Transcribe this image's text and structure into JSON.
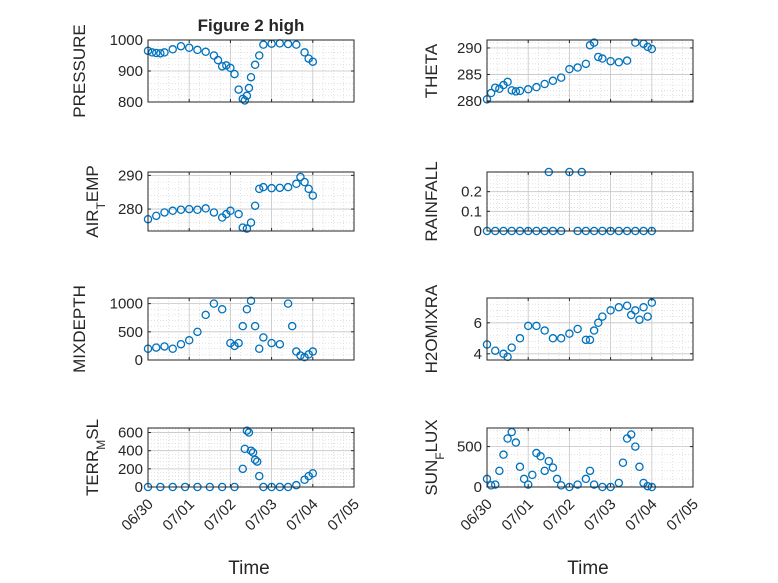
{
  "figure": {
    "title": "Figure 2 high"
  },
  "chart_data": [
    {
      "type": "scatter",
      "title": "Figure 2 high",
      "xlabel": "",
      "ylabel": "PRESSURE",
      "ylim": [
        800,
        1000
      ],
      "yticks": [
        "800",
        "900",
        "1000"
      ],
      "xlim": [
        0,
        5
      ],
      "xticks": [],
      "grid": "on",
      "x": [
        0.0,
        0.1,
        0.2,
        0.3,
        0.4,
        0.6,
        0.8,
        1.0,
        1.2,
        1.4,
        1.6,
        1.7,
        1.8,
        1.9,
        2.0,
        2.1,
        2.2,
        2.3,
        2.35,
        2.4,
        2.45,
        2.5,
        2.6,
        2.7,
        2.8,
        3.0,
        3.2,
        3.4,
        3.6,
        3.8,
        3.9,
        4.0
      ],
      "y": [
        965,
        960,
        958,
        957,
        960,
        970,
        980,
        975,
        968,
        962,
        950,
        935,
        915,
        918,
        910,
        890,
        840,
        810,
        805,
        820,
        845,
        880,
        920,
        950,
        985,
        988,
        989,
        987,
        985,
        960,
        940,
        930
      ]
    },
    {
      "type": "scatter",
      "title": "",
      "xlabel": "",
      "ylabel": "THETA",
      "ylim": [
        279.8,
        291.5
      ],
      "yticks": [
        "280",
        "285",
        "290"
      ],
      "xlim": [
        0,
        5
      ],
      "xticks": [],
      "grid": "on",
      "x": [
        0.0,
        0.1,
        0.2,
        0.3,
        0.4,
        0.5,
        0.6,
        0.7,
        0.8,
        1.0,
        1.2,
        1.4,
        1.6,
        1.8,
        2.0,
        2.2,
        2.4,
        2.5,
        2.6,
        2.7,
        2.8,
        3.0,
        3.2,
        3.4,
        3.6,
        3.8,
        3.9,
        4.0
      ],
      "y": [
        280.3,
        281.5,
        282.5,
        282.3,
        283.0,
        283.6,
        282.0,
        281.8,
        281.9,
        282.2,
        282.6,
        283.2,
        283.8,
        284.4,
        286.0,
        286.3,
        287.0,
        290.5,
        291.0,
        288.3,
        288.0,
        287.5,
        287.3,
        287.6,
        291.0,
        290.8,
        290.2,
        289.8
      ]
    },
    {
      "type": "scatter",
      "title": "",
      "xlabel": "",
      "ylabel": "AIR_TEMP",
      "ylim": [
        273.5,
        291
      ],
      "yticks": [
        "280",
        "290"
      ],
      "xlim": [
        0,
        5
      ],
      "xticks": [],
      "grid": "on",
      "x": [
        0.0,
        0.2,
        0.4,
        0.6,
        0.8,
        1.0,
        1.2,
        1.4,
        1.6,
        1.8,
        1.9,
        2.0,
        2.2,
        2.3,
        2.4,
        2.5,
        2.6,
        2.7,
        2.8,
        3.0,
        3.2,
        3.4,
        3.6,
        3.7,
        3.8,
        3.9,
        4.0
      ],
      "y": [
        277.0,
        278.0,
        279.0,
        279.5,
        279.8,
        280.0,
        279.8,
        280.2,
        279.0,
        277.5,
        278.5,
        279.5,
        278.5,
        274.5,
        274.2,
        276.0,
        281.0,
        286.0,
        286.5,
        286.2,
        286.3,
        286.5,
        287.5,
        289.5,
        288.0,
        286.0,
        284.0
      ]
    },
    {
      "type": "scatter",
      "title": "",
      "xlabel": "",
      "ylabel": "RAINFALL",
      "ylim": [
        0,
        0.3
      ],
      "yticks": [
        "0",
        "0.1",
        "0.2"
      ],
      "xlim": [
        0,
        5
      ],
      "xticks": [],
      "grid": "on",
      "x": [
        0.0,
        0.2,
        0.4,
        0.6,
        0.8,
        1.0,
        1.2,
        1.4,
        1.5,
        1.6,
        1.8,
        2.0,
        2.2,
        2.3,
        2.4,
        2.6,
        2.8,
        3.0,
        3.2,
        3.4,
        3.6,
        3.8,
        4.0
      ],
      "y": [
        0,
        0,
        0,
        0,
        0,
        0,
        0,
        0,
        0.3,
        0,
        0,
        0.3,
        0,
        0.3,
        0,
        0,
        0,
        0,
        0,
        0,
        0,
        0,
        0
      ]
    },
    {
      "type": "scatter",
      "title": "",
      "xlabel": "",
      "ylabel": "MIXDEPTH",
      "ylim": [
        0,
        1100
      ],
      "yticks": [
        "0",
        "500",
        "1000"
      ],
      "xlim": [
        0,
        5
      ],
      "xticks": [],
      "grid": "on",
      "x": [
        0.0,
        0.2,
        0.4,
        0.6,
        0.8,
        1.0,
        1.2,
        1.4,
        1.6,
        1.8,
        2.0,
        2.1,
        2.2,
        2.3,
        2.4,
        2.5,
        2.6,
        2.7,
        2.8,
        3.0,
        3.2,
        3.4,
        3.5,
        3.6,
        3.7,
        3.8,
        3.9,
        4.0
      ],
      "y": [
        200,
        220,
        240,
        200,
        280,
        350,
        500,
        800,
        1000,
        900,
        300,
        250,
        300,
        600,
        900,
        1050,
        600,
        200,
        400,
        300,
        280,
        1000,
        600,
        150,
        80,
        50,
        100,
        150
      ]
    },
    {
      "type": "scatter",
      "title": "",
      "xlabel": "",
      "ylabel": "H2OMIXRA",
      "ylim": [
        3.6,
        7.6
      ],
      "yticks": [
        "4",
        "6"
      ],
      "xlim": [
        0,
        5
      ],
      "xticks": [],
      "grid": "on",
      "x": [
        0.0,
        0.2,
        0.4,
        0.5,
        0.6,
        0.8,
        1.0,
        1.2,
        1.4,
        1.6,
        1.8,
        2.0,
        2.2,
        2.4,
        2.5,
        2.6,
        2.7,
        2.8,
        3.0,
        3.2,
        3.4,
        3.5,
        3.6,
        3.7,
        3.8,
        3.9,
        4.0
      ],
      "y": [
        4.6,
        4.2,
        4.0,
        3.8,
        4.4,
        5.0,
        5.8,
        5.8,
        5.5,
        5.0,
        5.0,
        5.3,
        5.6,
        4.9,
        4.9,
        5.5,
        6.0,
        6.4,
        6.8,
        7.0,
        7.1,
        6.5,
        6.8,
        6.2,
        7.0,
        6.4,
        7.3
      ]
    },
    {
      "type": "scatter",
      "title": "",
      "xlabel": "Time",
      "ylabel": "TERR_MSL",
      "ylim": [
        0,
        650
      ],
      "yticks": [
        "0",
        "200",
        "400",
        "600"
      ],
      "xlim": [
        0,
        5
      ],
      "xticks": [
        "06/30",
        "07/01",
        "07/02",
        "07/03",
        "07/04",
        "07/05"
      ],
      "grid": "on",
      "x": [
        0.0,
        0.3,
        0.6,
        0.9,
        1.2,
        1.5,
        1.8,
        2.1,
        2.3,
        2.35,
        2.4,
        2.45,
        2.5,
        2.55,
        2.6,
        2.65,
        2.7,
        2.8,
        3.0,
        3.2,
        3.4,
        3.6,
        3.8,
        3.9,
        4.0
      ],
      "y": [
        0,
        0,
        0,
        0,
        0,
        0,
        0,
        0,
        200,
        420,
        620,
        600,
        400,
        380,
        300,
        280,
        120,
        0,
        0,
        0,
        0,
        20,
        80,
        120,
        150
      ]
    },
    {
      "type": "scatter",
      "title": "",
      "xlabel": "Time",
      "ylabel": "SUN_FLUX",
      "ylim": [
        0,
        730
      ],
      "yticks": [
        "0",
        "500"
      ],
      "xlim": [
        0,
        5
      ],
      "xticks": [
        "06/30",
        "07/01",
        "07/02",
        "07/03",
        "07/04",
        "07/05"
      ],
      "grid": "on",
      "x": [
        0.0,
        0.1,
        0.2,
        0.3,
        0.4,
        0.5,
        0.6,
        0.7,
        0.8,
        0.9,
        1.0,
        1.1,
        1.2,
        1.3,
        1.4,
        1.5,
        1.6,
        1.7,
        1.8,
        2.0,
        2.2,
        2.4,
        2.5,
        2.6,
        2.8,
        3.0,
        3.2,
        3.3,
        3.4,
        3.5,
        3.6,
        3.7,
        3.8,
        3.9,
        4.0
      ],
      "y": [
        100,
        20,
        30,
        200,
        400,
        600,
        680,
        550,
        250,
        100,
        30,
        150,
        420,
        380,
        200,
        320,
        240,
        100,
        20,
        0,
        30,
        100,
        200,
        30,
        0,
        0,
        50,
        300,
        600,
        650,
        500,
        250,
        50,
        10,
        0
      ]
    }
  ]
}
